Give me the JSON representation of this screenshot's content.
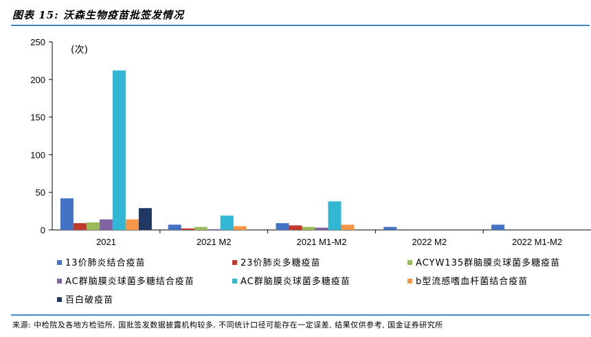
{
  "title": "图表 15: 沃森生物疫苗批签发情况",
  "source": "来源: 中检院及各地方检验所, 国批签发数据披露机构较多, 不同统计口径可能存在一定误差, 结果仅供参考, 国金证券研究所",
  "chart_data": {
    "type": "bar",
    "unit_label": "(次)",
    "categories": [
      "2021",
      "2021 M2",
      "2021 M1-M2",
      "2022 M2",
      "2022 M1-M2"
    ],
    "ylim": [
      0,
      250
    ],
    "yticks": [
      0,
      50,
      100,
      150,
      200,
      250
    ],
    "legend_position": "bottom",
    "grid": false,
    "series": [
      {
        "name": "13价肺炎结合疫苗",
        "color": "#4472c4",
        "values": [
          42,
          7,
          9,
          4,
          7
        ]
      },
      {
        "name": "23价肺炎多糖疫苗",
        "color": "#c0392b",
        "values": [
          9,
          2,
          6,
          0,
          0
        ]
      },
      {
        "name": "ACYW135群脑膜炎球菌多糖疫苗",
        "color": "#9bbb59",
        "values": [
          10,
          4,
          4,
          0,
          0
        ]
      },
      {
        "name": "AC群脑膜炎球菌多糖结合疫苗",
        "color": "#8064a2",
        "values": [
          14,
          1,
          3,
          0,
          0
        ]
      },
      {
        "name": "AC群脑膜炎球菌多糖疫苗",
        "color": "#31b6d4",
        "values": [
          212,
          19,
          38,
          0,
          0
        ]
      },
      {
        "name": "b型流感嗜血杆菌结合疫苗",
        "color": "#f79646",
        "values": [
          14,
          5,
          7,
          0,
          0
        ]
      },
      {
        "name": "百白破疫苗",
        "color": "#1f3864",
        "values": [
          29,
          0,
          0,
          0,
          0
        ]
      }
    ]
  }
}
